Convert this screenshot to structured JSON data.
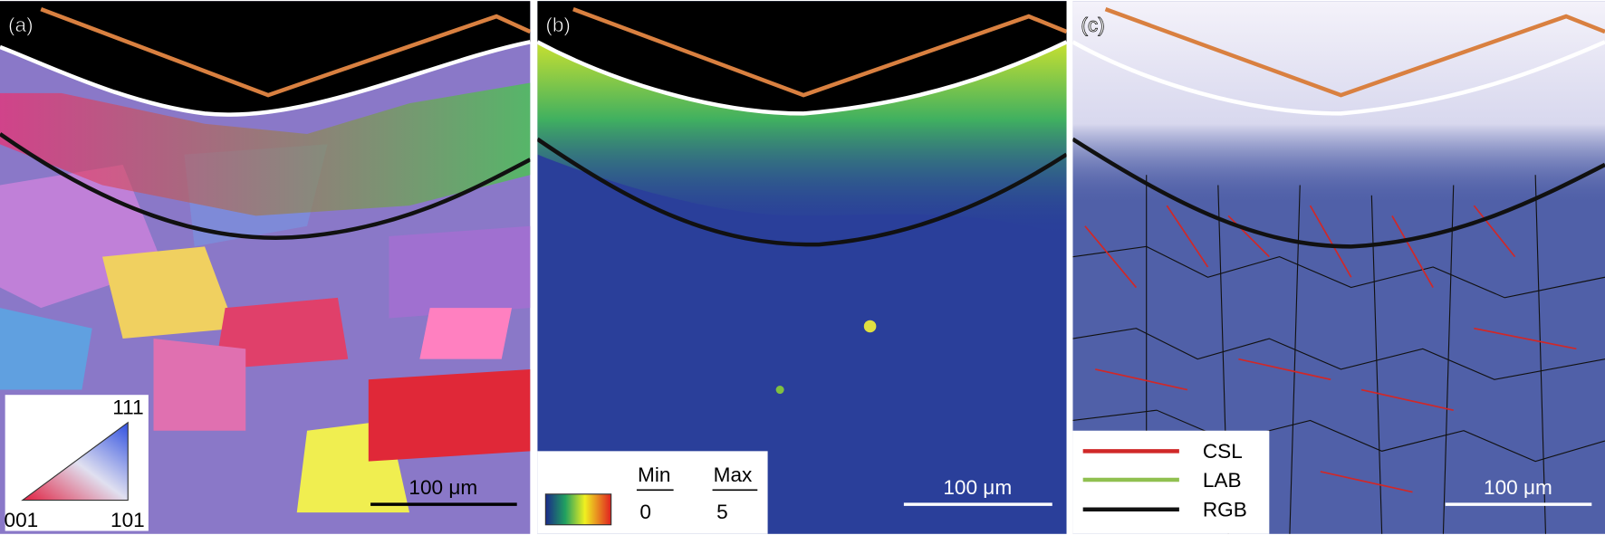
{
  "panels": [
    {
      "label": "(a)",
      "legend": {
        "corners": [
          "111",
          "001",
          "101"
        ]
      },
      "scale_bar": "100 μm"
    },
    {
      "label": "(b)",
      "legend": {
        "min_label": "Min",
        "max_label": "Max",
        "min_value": "0",
        "max_value": "5"
      },
      "scale_bar": "100 μm"
    },
    {
      "label": "(c)",
      "legend": {
        "entries": [
          "CSL",
          "LAB",
          "RGB"
        ]
      },
      "scale_bar": "100 μm"
    }
  ]
}
